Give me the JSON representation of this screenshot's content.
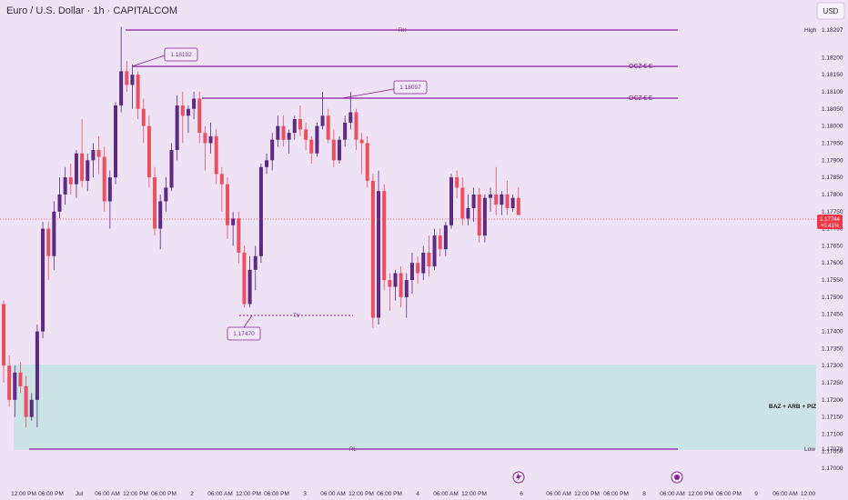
{
  "header": {
    "title": "Euro / U.S. Dollar · 1h · CAPITALCOM",
    "currency_button": "USD"
  },
  "chart_data": {
    "type": "candlestick",
    "title": "Euro / U.S. Dollar · 1h · CAPITALCOM",
    "ylim": [
      1.1695,
      1.18315
    ],
    "y_ticks": [
      1.182,
      1.1815,
      1.181,
      1.1805,
      1.18,
      1.1795,
      1.179,
      1.1785,
      1.178,
      1.1775,
      1.177,
      1.1765,
      1.176,
      1.1755,
      1.175,
      1.1745,
      1.174,
      1.1735,
      1.173,
      1.1725,
      1.172,
      1.1715,
      1.171,
      1.1705,
      1.17
    ],
    "y_tick_labels": [
      "1.18200",
      "1.18150",
      "1.18100",
      "1.18050",
      "1.18000",
      "1.17950",
      "1.17900",
      "1.17850",
      "1.17800",
      "1.17750",
      "1.17700",
      "1.17650",
      "1.17600",
      "1.17550",
      "1.17500",
      "1.17450",
      "1.17400",
      "1.17350",
      "1.17300",
      "1.17250",
      "1.17200",
      "1.17150",
      "1.17100",
      "1.17050",
      "1.17000"
    ],
    "x_tick_labels": [
      "12:00 PM",
      "06:00 PM",
      "Jul",
      "06:00 AM",
      "12:00 PM",
      "06:00 PM",
      "2",
      "06:00 AM",
      "12:00 PM",
      "06:00 PM",
      "3",
      "06:00 AM",
      "12:00 PM",
      "06:00 PM",
      "4",
      "06:00 AM",
      "12:00 PM",
      "6",
      "06:00 AM",
      "12:00 PM",
      "06:00 PM",
      "8",
      "06:00 AM",
      "12:00 PM",
      "06:00 PM",
      "9",
      "06:00 AM",
      "12:00"
    ],
    "colors": {
      "up": "#5b2a86",
      "down": "#f04d5d",
      "level": "#8a1f9a",
      "zone": "#c8e3e3",
      "price": "#f23645"
    },
    "candles_ohlc": [
      [
        1.1748,
        1.1749,
        1.1725,
        1.173
      ],
      [
        1.173,
        1.1733,
        1.1718,
        1.172
      ],
      [
        1.172,
        1.173,
        1.1715,
        1.1728
      ],
      [
        1.1728,
        1.1731,
        1.1722,
        1.1724
      ],
      [
        1.1724,
        1.1727,
        1.1712,
        1.1715
      ],
      [
        1.1715,
        1.1722,
        1.1714,
        1.172
      ],
      [
        1.172,
        1.1742,
        1.1712,
        1.174
      ],
      [
        1.174,
        1.1772,
        1.1738,
        1.177
      ],
      [
        1.177,
        1.1772,
        1.1755,
        1.1762
      ],
      [
        1.1762,
        1.1778,
        1.1758,
        1.1775
      ],
      [
        1.1775,
        1.1785,
        1.1773,
        1.178
      ],
      [
        1.178,
        1.1788,
        1.1777,
        1.1785
      ],
      [
        1.1785,
        1.1789,
        1.178,
        1.1783
      ],
      [
        1.1783,
        1.1793,
        1.1779,
        1.1792
      ],
      [
        1.1792,
        1.1802,
        1.1782,
        1.1784
      ],
      [
        1.1784,
        1.1792,
        1.1781,
        1.179
      ],
      [
        1.179,
        1.1795,
        1.1785,
        1.1793
      ],
      [
        1.1793,
        1.1797,
        1.1786,
        1.1791
      ],
      [
        1.1791,
        1.1794,
        1.1775,
        1.1778
      ],
      [
        1.1778,
        1.1787,
        1.177,
        1.1785
      ],
      [
        1.1785,
        1.1807,
        1.1783,
        1.1806
      ],
      [
        1.1806,
        1.1829,
        1.1804,
        1.1816
      ],
      [
        1.1816,
        1.1819,
        1.181,
        1.1812
      ],
      [
        1.1812,
        1.1818,
        1.1805,
        1.1815
      ],
      [
        1.1815,
        1.1816,
        1.1802,
        1.1805
      ],
      [
        1.1805,
        1.1808,
        1.1795,
        1.18
      ],
      [
        1.18,
        1.1803,
        1.1782,
        1.1785
      ],
      [
        1.1785,
        1.1788,
        1.1768,
        1.177
      ],
      [
        1.177,
        1.178,
        1.1764,
        1.1778
      ],
      [
        1.1778,
        1.1785,
        1.1775,
        1.1782
      ],
      [
        1.1782,
        1.1795,
        1.1781,
        1.1793
      ],
      [
        1.1793,
        1.1809,
        1.179,
        1.1806
      ],
      [
        1.1806,
        1.181,
        1.1795,
        1.1803
      ],
      [
        1.1803,
        1.1806,
        1.1798,
        1.1805
      ],
      [
        1.1805,
        1.181,
        1.1802,
        1.1808
      ],
      [
        1.1808,
        1.181,
        1.1795,
        1.1798
      ],
      [
        1.1798,
        1.18,
        1.1787,
        1.1795
      ],
      [
        1.1795,
        1.1801,
        1.1792,
        1.1797
      ],
      [
        1.1797,
        1.1799,
        1.1783,
        1.1786
      ],
      [
        1.1786,
        1.1788,
        1.1775,
        1.1783
      ],
      [
        1.1783,
        1.1785,
        1.1767,
        1.1771
      ],
      [
        1.1771,
        1.1775,
        1.1765,
        1.1773
      ],
      [
        1.1773,
        1.1775,
        1.176,
        1.1763
      ],
      [
        1.1763,
        1.1765,
        1.1747,
        1.1748
      ],
      [
        1.1748,
        1.1762,
        1.1747,
        1.1758
      ],
      [
        1.1758,
        1.1765,
        1.1752,
        1.1762
      ],
      [
        1.1762,
        1.1789,
        1.176,
        1.1788
      ],
      [
        1.1788,
        1.1792,
        1.1786,
        1.179
      ],
      [
        1.179,
        1.1798,
        1.1787,
        1.1796
      ],
      [
        1.1796,
        1.1803,
        1.1794,
        1.18
      ],
      [
        1.18,
        1.1803,
        1.1794,
        1.1796
      ],
      [
        1.1796,
        1.1799,
        1.1792,
        1.1798
      ],
      [
        1.1798,
        1.1803,
        1.1796,
        1.1802
      ],
      [
        1.1802,
        1.1806,
        1.1797,
        1.1799
      ],
      [
        1.1799,
        1.1801,
        1.1793,
        1.1796
      ],
      [
        1.1796,
        1.1797,
        1.1789,
        1.1792
      ],
      [
        1.1792,
        1.1801,
        1.1791,
        1.18
      ],
      [
        1.18,
        1.181,
        1.1799,
        1.1803
      ],
      [
        1.1803,
        1.1805,
        1.1795,
        1.1796
      ],
      [
        1.1796,
        1.1799,
        1.1788,
        1.179
      ],
      [
        1.179,
        1.1797,
        1.1789,
        1.1796
      ],
      [
        1.1796,
        1.1803,
        1.1794,
        1.1801
      ],
      [
        1.1801,
        1.181,
        1.1799,
        1.1804
      ],
      [
        1.1804,
        1.1805,
        1.1793,
        1.1796
      ],
      [
        1.1796,
        1.1798,
        1.1786,
        1.1795
      ],
      [
        1.1795,
        1.1797,
        1.1782,
        1.1784
      ],
      [
        1.1784,
        1.1786,
        1.1741,
        1.1744
      ],
      [
        1.1744,
        1.1787,
        1.1742,
        1.1781
      ],
      [
        1.1781,
        1.1783,
        1.1752,
        1.1755
      ],
      [
        1.1755,
        1.1757,
        1.1746,
        1.1753
      ],
      [
        1.1753,
        1.1758,
        1.1749,
        1.1757
      ],
      [
        1.1757,
        1.1759,
        1.1747,
        1.175
      ],
      [
        1.175,
        1.1757,
        1.1744,
        1.1755
      ],
      [
        1.1755,
        1.1763,
        1.1751,
        1.176
      ],
      [
        1.176,
        1.1762,
        1.1754,
        1.1757
      ],
      [
        1.1757,
        1.1765,
        1.1755,
        1.1763
      ],
      [
        1.1763,
        1.1768,
        1.1756,
        1.1759
      ],
      [
        1.1759,
        1.177,
        1.1758,
        1.1768
      ],
      [
        1.1768,
        1.177,
        1.1762,
        1.1764
      ],
      [
        1.1764,
        1.1772,
        1.1762,
        1.1771
      ],
      [
        1.1771,
        1.1786,
        1.177,
        1.1785
      ],
      [
        1.1785,
        1.1787,
        1.1779,
        1.1782
      ],
      [
        1.1782,
        1.1785,
        1.1771,
        1.1773
      ],
      [
        1.1773,
        1.178,
        1.1771,
        1.1776
      ],
      [
        1.1776,
        1.1782,
        1.1772,
        1.178
      ],
      [
        1.178,
        1.1782,
        1.1766,
        1.1768
      ],
      [
        1.1768,
        1.178,
        1.1766,
        1.1779
      ],
      [
        1.1779,
        1.1782,
        1.1775,
        1.178
      ],
      [
        1.178,
        1.1788,
        1.1774,
        1.1777
      ],
      [
        1.1777,
        1.1781,
        1.1774,
        1.178
      ],
      [
        1.178,
        1.1784,
        1.1774,
        1.1776
      ],
      [
        1.1776,
        1.178,
        1.1775,
        1.1779
      ],
      [
        1.1779,
        1.1782,
        1.1774,
        1.1774
      ]
    ],
    "levels": [
      {
        "label": "RH",
        "price": 1.18297
      },
      {
        "label": "OCZ",
        "price": 1.18192
      },
      {
        "label": "OCZ",
        "price": 1.18097
      },
      {
        "label": "TV",
        "price": 1.1747
      },
      {
        "label": "RL",
        "price": 1.17078
      }
    ],
    "price_callouts": [
      "1.18192",
      "1.18097",
      "1.17470"
    ],
    "zone": {
      "label": "BAZ + ARB + PIZ",
      "from": 1.17078,
      "to": 1.17325
    },
    "high_label": "High",
    "high_value": "1.18297",
    "low_label": "Low",
    "low_value": "1.17078",
    "current_price": "1.17744",
    "current_change": "+0.41%",
    "current_price_value": 1.17744
  }
}
